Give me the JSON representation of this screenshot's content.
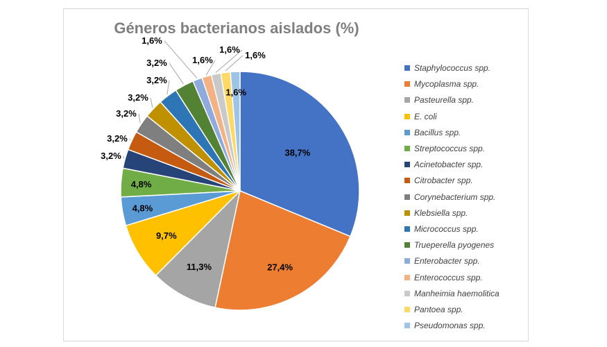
{
  "chart_data": {
    "type": "pie",
    "title": "Géneros bacterianos aislados (%)",
    "series": [
      {
        "name": "Staphylococcus spp.",
        "value": 38.7,
        "label": "38,7%",
        "color": "#4472C4"
      },
      {
        "name": "Mycoplasma spp.",
        "value": 27.4,
        "label": "27,4%",
        "color": "#ED7D31"
      },
      {
        "name": "Pasteurella spp.",
        "value": 11.3,
        "label": "11,3%",
        "color": "#A5A5A5"
      },
      {
        "name": "E. coli",
        "value": 9.7,
        "label": "9,7%",
        "color": "#FFC000"
      },
      {
        "name": "Bacillus spp.",
        "value": 4.8,
        "label": "4,8%",
        "color": "#5B9BD5"
      },
      {
        "name": "Streptococcus spp.",
        "value": 4.8,
        "label": "4,8%",
        "color": "#70AD47"
      },
      {
        "name": "Acinetobacter spp.",
        "value": 3.2,
        "label": "3,2%",
        "color": "#264478"
      },
      {
        "name": "Citrobacter spp.",
        "value": 3.2,
        "label": "3,2%",
        "color": "#C55A11"
      },
      {
        "name": "Corynebacterium spp.",
        "value": 3.2,
        "label": "3,2%",
        "color": "#7F7F7F"
      },
      {
        "name": "Klebsiella spp.",
        "value": 3.2,
        "label": "3,2%",
        "color": "#BF9000"
      },
      {
        "name": "Micrococcus spp.",
        "value": 3.2,
        "label": "3,2%",
        "color": "#2E75B6"
      },
      {
        "name": "Trueperella pyogenes",
        "value": 3.2,
        "label": "3,2%",
        "color": "#548235"
      },
      {
        "name": "Enterobacter spp.",
        "value": 1.6,
        "label": "1,6%",
        "color": "#8FAADC"
      },
      {
        "name": "Enterococcus spp.",
        "value": 1.6,
        "label": "1,6%",
        "color": "#F4B183"
      },
      {
        "name": "Manheimia haemolitica",
        "value": 1.6,
        "label": "1,6%",
        "color": "#C9C9C9"
      },
      {
        "name": "Pantoea spp.",
        "value": 1.6,
        "label": "1,6%",
        "color": "#FFD966"
      },
      {
        "name": "Pseudomonas spp.",
        "value": 1.6,
        "label": "1,6%",
        "color": "#9DC3E6"
      }
    ],
    "legend_position": "right"
  }
}
